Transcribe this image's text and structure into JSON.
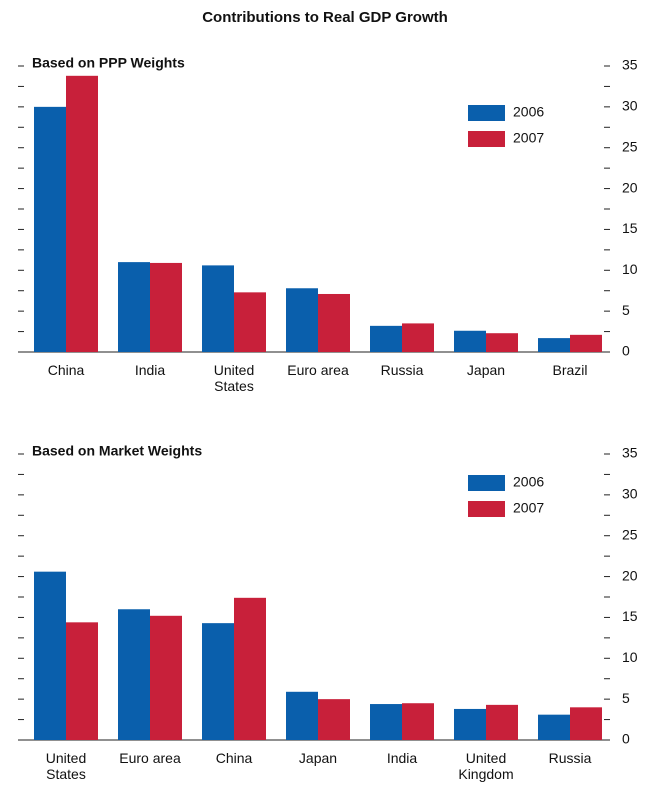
{
  "title": "Contributions to Real GDP Growth",
  "chart_data": [
    {
      "type": "bar",
      "subtitle": "Based on PPP Weights",
      "categories": [
        "China",
        "India",
        "United States",
        "Euro area",
        "Russia",
        "Japan",
        "Brazil"
      ],
      "series": [
        {
          "name": "2006",
          "color": "#0a5fac",
          "values": [
            30.0,
            11.0,
            10.6,
            7.8,
            3.2,
            2.6,
            1.7
          ]
        },
        {
          "name": "2007",
          "color": "#c8203a",
          "values": [
            33.8,
            10.9,
            7.3,
            7.1,
            3.5,
            2.3,
            2.1
          ]
        }
      ],
      "ylim": [
        0,
        35
      ],
      "yticks": [
        0,
        5,
        10,
        15,
        20,
        25,
        30,
        35
      ],
      "yticks_minor": [
        2.5,
        7.5,
        12.5,
        17.5,
        22.5,
        27.5,
        32.5
      ]
    },
    {
      "type": "bar",
      "subtitle": "Based on Market Weights",
      "categories": [
        "United States",
        "Euro area",
        "China",
        "Japan",
        "India",
        "United Kingdom",
        "Russia"
      ],
      "series": [
        {
          "name": "2006",
          "color": "#0a5fac",
          "values": [
            20.6,
            16.0,
            14.3,
            5.9,
            4.4,
            3.8,
            3.1
          ]
        },
        {
          "name": "2007",
          "color": "#c8203a",
          "values": [
            14.4,
            15.2,
            17.4,
            5.0,
            4.5,
            4.3,
            4.0
          ]
        }
      ],
      "ylim": [
        0,
        35
      ],
      "yticks": [
        0,
        5,
        10,
        15,
        20,
        25,
        30,
        35
      ],
      "yticks_minor": [
        2.5,
        7.5,
        12.5,
        17.5,
        22.5,
        27.5,
        32.5
      ]
    }
  ]
}
